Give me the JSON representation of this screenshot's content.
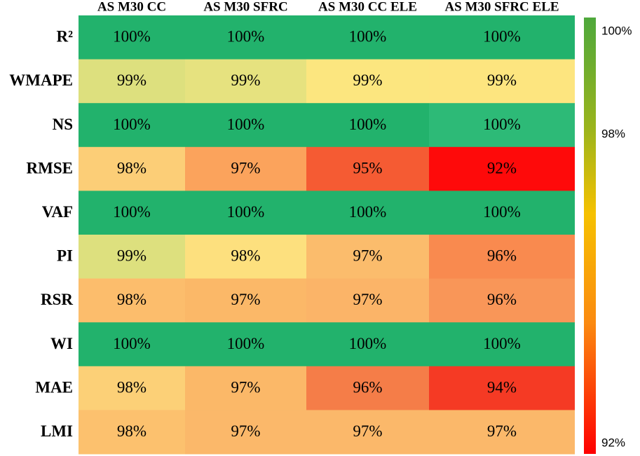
{
  "chart_data": {
    "type": "heatmap",
    "columns": [
      "AS M30 CC",
      "AS M30 SFRC",
      "AS M30 CC ELE",
      "AS M30 SFRC ELE"
    ],
    "rows": [
      "R²",
      "WMAPE",
      "NS",
      "RMSE",
      "VAF",
      "PI",
      "RSR",
      "WI",
      "MAE",
      "LMI"
    ],
    "values": [
      [
        100,
        100,
        100,
        100
      ],
      [
        99,
        99,
        99,
        99
      ],
      [
        100,
        100,
        100,
        100
      ],
      [
        98,
        97,
        95,
        92
      ],
      [
        100,
        100,
        100,
        100
      ],
      [
        99,
        98,
        97,
        96
      ],
      [
        98,
        97,
        97,
        96
      ],
      [
        100,
        100,
        100,
        100
      ],
      [
        98,
        97,
        96,
        94
      ],
      [
        98,
        97,
        97,
        97
      ]
    ],
    "value_labels": [
      [
        "100%",
        "100%",
        "100%",
        "100%"
      ],
      [
        "99%",
        "99%",
        "99%",
        "99%"
      ],
      [
        "100%",
        "100%",
        "100%",
        "100%"
      ],
      [
        "98%",
        "97%",
        "95%",
        "92%"
      ],
      [
        "100%",
        "100%",
        "100%",
        "100%"
      ],
      [
        "99%",
        "98%",
        "97%",
        "96%"
      ],
      [
        "98%",
        "97%",
        "97%",
        "96%"
      ],
      [
        "100%",
        "100%",
        "100%",
        "100%"
      ],
      [
        "98%",
        "97%",
        "96%",
        "94%"
      ],
      [
        "98%",
        "97%",
        "97%",
        "97%"
      ]
    ],
    "colors": [
      [
        "#22b26c",
        "#22b26c",
        "#22b26c",
        "#22b26c"
      ],
      [
        "#dde07e",
        "#e6e27f",
        "#fce67f",
        "#fde57f"
      ],
      [
        "#22b26c",
        "#22b26c",
        "#22b26c",
        "#2dba77"
      ],
      [
        "#fcce77",
        "#fba35c",
        "#f55b33",
        "#fe0a0a"
      ],
      [
        "#22b26c",
        "#22b26c",
        "#22b26c",
        "#22b26c"
      ],
      [
        "#dde07e",
        "#fde07e",
        "#fbbc6c",
        "#f98a4f"
      ],
      [
        "#fcbd6c",
        "#fbb868",
        "#fbb468",
        "#f99658"
      ],
      [
        "#22b26c",
        "#22b26c",
        "#22b26c",
        "#22b26c"
      ],
      [
        "#fcd077",
        "#fbb868",
        "#f57d48",
        "#f53a24"
      ],
      [
        "#fcc16e",
        "#fbb86a",
        "#fbb86a",
        "#fbb86a"
      ]
    ],
    "colorbar_lim": [
      92,
      100
    ],
    "colorbar_ticks": [
      {
        "value": 100,
        "label": "100%"
      },
      {
        "value": 98,
        "label": "98%"
      },
      {
        "value": 92,
        "label": "92%"
      }
    ]
  }
}
